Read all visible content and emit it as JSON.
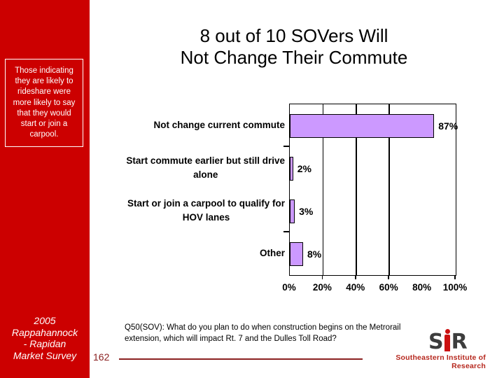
{
  "slide": {
    "title": "8 out of 10 SOVers Will\nNot Change Their Commute",
    "sidebar": {
      "note": "Those indicating they are likely to rideshare were more likely to say that they would start or join a carpool.",
      "footer": "2005\nRappahannock\n- Rapidan\nMarket Survey"
    },
    "footer": {
      "question": "Q50(SOV): What do you plan to do when construction begins on the Metrorail\nextension, which will impact Rt. 7 and the Dulles Toll Road?",
      "page_number": "162",
      "logo_letters": {
        "s": "S",
        "r": "R"
      },
      "logo_text": "Southeastern Institute of Research"
    },
    "colors": {
      "sidebar_red": "#cc0000",
      "bar_fill": "#cc99ff",
      "footer_maroon": "#8b2121",
      "logo_red": "#b6281e"
    }
  },
  "chart_data": {
    "type": "bar",
    "orientation": "horizontal",
    "categories": [
      "Not change current commute",
      "Start commute earlier but still drive\nalone",
      "Start or join a carpool to qualify for\nHOV lanes",
      "Other"
    ],
    "values": [
      87,
      2,
      3,
      8
    ],
    "value_labels": [
      "87%",
      "2%",
      "3%",
      "8%"
    ],
    "x_tick_labels": [
      "0%",
      "20%",
      "40%",
      "60%",
      "80%",
      "100%"
    ],
    "x_tick_values": [
      0,
      20,
      40,
      60,
      80,
      100
    ],
    "xlim": [
      0,
      100
    ],
    "gridlines_at": [
      20,
      40,
      60
    ],
    "tick_marks_at": [
      20,
      40,
      60,
      100
    ],
    "category_boundary_ticks_after_rows": [
      1,
      3
    ],
    "legend": "none",
    "title": "",
    "xlabel": "",
    "ylabel": ""
  }
}
